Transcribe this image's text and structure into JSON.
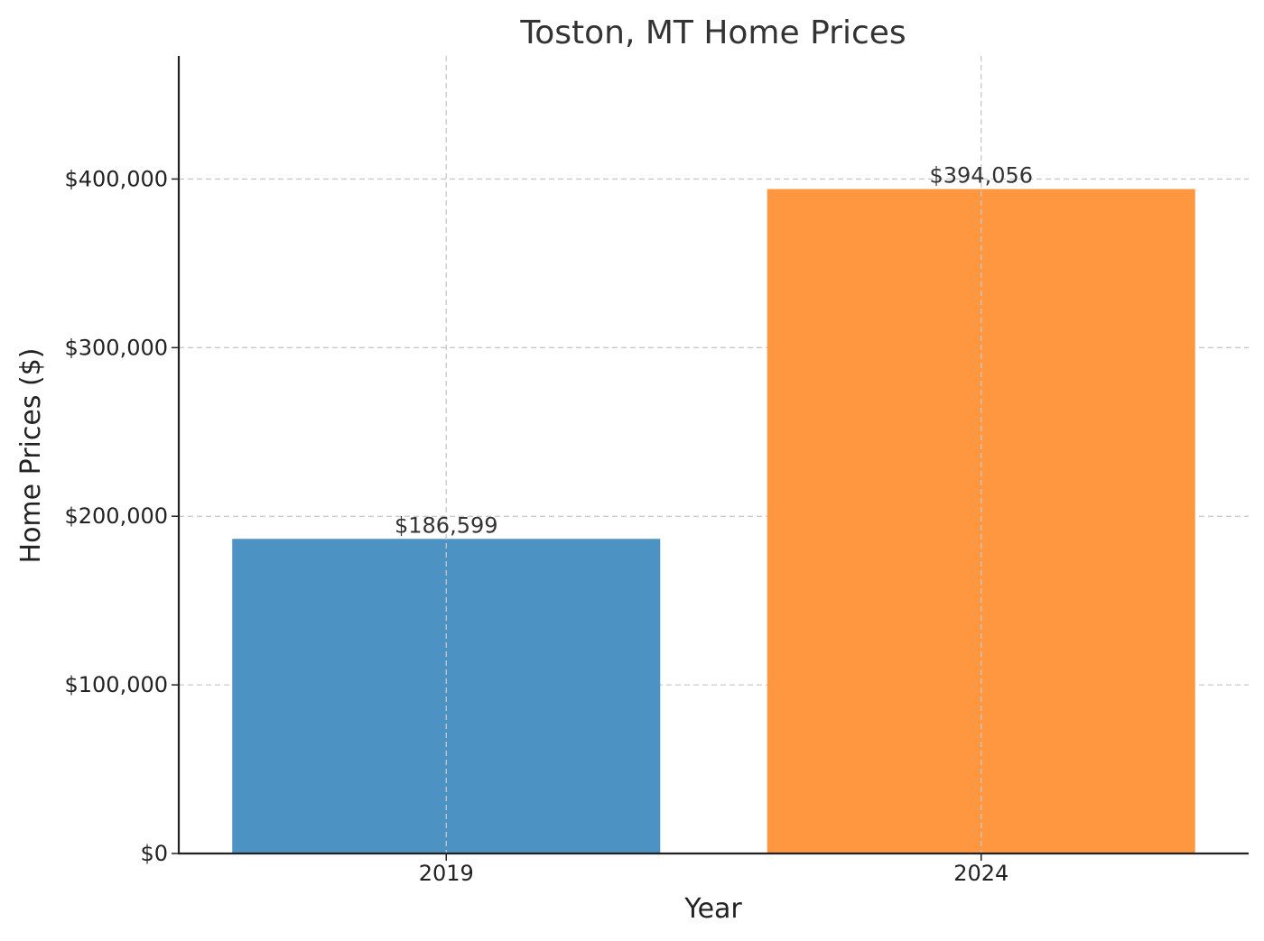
{
  "chart_data": {
    "type": "bar",
    "title": "Toston, MT Home Prices",
    "xlabel": "Year",
    "ylabel": "Home Prices ($)",
    "categories": [
      "2019",
      "2024"
    ],
    "values": [
      186599,
      394056
    ],
    "value_labels": [
      "$186,599",
      "$394,056"
    ],
    "colors": [
      "#4c92c3",
      "#ff9741"
    ],
    "ylim": [
      0,
      473000
    ],
    "yticks": [
      0,
      100000,
      200000,
      300000,
      400000
    ],
    "ytick_labels": [
      "$0",
      "$100,000",
      "$200,000",
      "$300,000",
      "$400,000"
    ],
    "grid": true
  }
}
